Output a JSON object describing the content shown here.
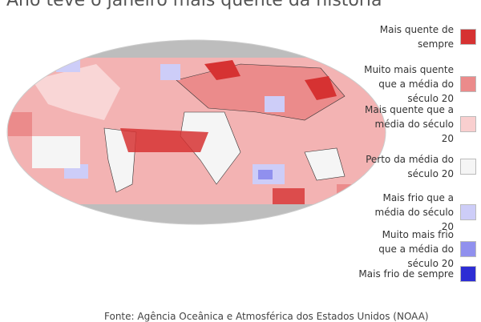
{
  "header": {
    "title": "Ano teve o janeiro mais quente da história"
  },
  "legend": {
    "items": [
      {
        "label": "Mais quente de sempre",
        "color": "#d63232"
      },
      {
        "label": "Muito mais quente que a média do século 20",
        "color": "#eb8b8b"
      },
      {
        "label": "Mais quente que a média do século 20",
        "color": "#f9cfcf"
      },
      {
        "label": "Perto da média do século 20",
        "color": "#f5f5f5"
      },
      {
        "label": "Mais frio que a média do século 20",
        "color": "#cdcdf8"
      },
      {
        "label": "Muito mais frio que a média do século 20",
        "color": "#9090ee"
      },
      {
        "label": "Mais frio de sempre",
        "color": "#2d2dd4"
      }
    ]
  },
  "footer": {
    "source": "Fonte: Agência Oceânica e Atmosférica dos Estados Unidos (NOAA)"
  }
}
